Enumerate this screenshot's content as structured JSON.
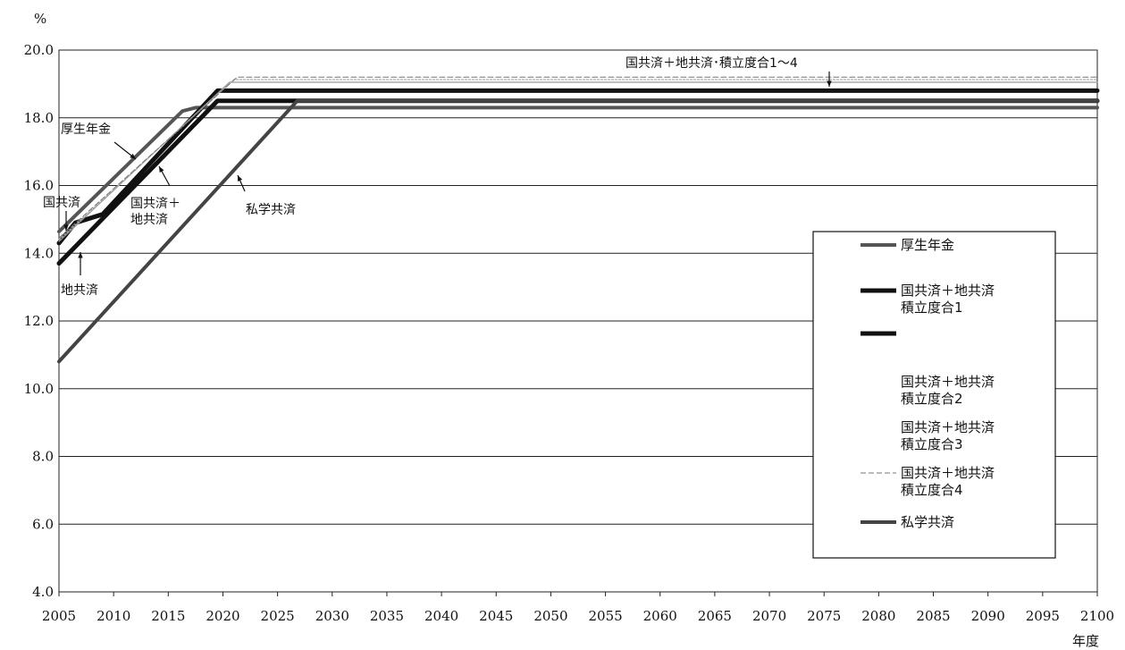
{
  "chart_data": {
    "type": "line",
    "title": "",
    "ylabel": "%",
    "xlabel": "年度",
    "xlim": [
      2005,
      2100
    ],
    "ylim": [
      4.0,
      20.0
    ],
    "x_ticks": [
      "2005",
      "2010",
      "2015",
      "2020",
      "2025",
      "2030",
      "2035",
      "2040",
      "2045",
      "2050",
      "2055",
      "2060",
      "2065",
      "2070",
      "2075",
      "2080",
      "2085",
      "2090",
      "2095",
      "2100"
    ],
    "y_ticks": [
      "4.0",
      "6.0",
      "8.0",
      "10.0",
      "12.0",
      "14.0",
      "16.0",
      "18.0",
      "20.0"
    ],
    "grid": "horizontal",
    "series": [
      {
        "name": "厚生年金",
        "color": "#555555",
        "width": 4,
        "dash": "",
        "points": [
          [
            2005,
            14.64
          ],
          [
            2016.3,
            18.2
          ],
          [
            2017.5,
            18.3
          ],
          [
            2100,
            18.3
          ]
        ]
      },
      {
        "name": "国共済＋地共済 積立度合1",
        "color": "#111111",
        "width": 5,
        "dash": "",
        "points": [
          [
            2005,
            14.3
          ],
          [
            2006.5,
            14.9
          ],
          [
            2009,
            15.15
          ],
          [
            2019.5,
            18.8
          ],
          [
            2100,
            18.8
          ]
        ]
      },
      {
        "name": "",
        "color": "#111111",
        "width": 5,
        "dash": "",
        "points": [
          [
            2005,
            13.7
          ],
          [
            2019.5,
            18.5
          ],
          [
            2100,
            18.5
          ]
        ]
      },
      {
        "name": "国共済＋地共済 積立度合2",
        "color": "#999999",
        "width": 1.2,
        "dash": "",
        "points": [
          [
            2005,
            14.35
          ],
          [
            2020.6,
            19.05
          ],
          [
            2100,
            19.05
          ]
        ]
      },
      {
        "name": "国共済＋地共済 積立度合3",
        "color": "#aaaaaa",
        "width": 1.2,
        "dash": "2,2",
        "points": [
          [
            2005,
            14.4
          ],
          [
            2021,
            19.13
          ],
          [
            2100,
            19.13
          ]
        ]
      },
      {
        "name": "国共済＋地共済 積立度合4",
        "color": "#777777",
        "width": 1,
        "dash": "6,3",
        "points": [
          [
            2005,
            14.45
          ],
          [
            2021.3,
            19.2
          ],
          [
            2100,
            19.2
          ]
        ]
      },
      {
        "name": "私学共済",
        "color": "#444444",
        "width": 4,
        "dash": "",
        "points": [
          [
            2005,
            10.8
          ],
          [
            2026.8,
            18.5
          ],
          [
            2100,
            18.5
          ]
        ]
      }
    ],
    "annotations": [
      {
        "text": "厚生年金"
      },
      {
        "text": "国共済"
      },
      {
        "text": "地共済"
      },
      {
        "text": "国共済＋"
      },
      {
        "text": "地共済"
      },
      {
        "text": "私学共済"
      },
      {
        "text": "国共済＋地共済･積立度合1～4"
      }
    ],
    "legend": {
      "position": "right",
      "entries": [
        {
          "lines": [
            "厚生年金"
          ],
          "color": "#555555",
          "width": 4,
          "dash": ""
        },
        {
          "lines": [
            "国共済＋地共済",
            "積立度合1"
          ],
          "color": "#111111",
          "width": 5,
          "dash": ""
        },
        {
          "lines": [
            ""
          ],
          "color": "#111111",
          "width": 5,
          "dash": ""
        },
        {
          "lines": [
            "国共済＋地共済",
            "積立度合2"
          ],
          "color": "#ffffff",
          "width": 1,
          "dash": ""
        },
        {
          "lines": [
            "国共済＋地共済",
            "積立度合3"
          ],
          "color": "#ffffff",
          "width": 1,
          "dash": ""
        },
        {
          "lines": [
            "国共済＋地共済",
            "積立度合4"
          ],
          "color": "#777777",
          "width": 1,
          "dash": "6,3"
        },
        {
          "lines": [
            "私学共済"
          ],
          "color": "#444444",
          "width": 4,
          "dash": ""
        }
      ]
    }
  }
}
